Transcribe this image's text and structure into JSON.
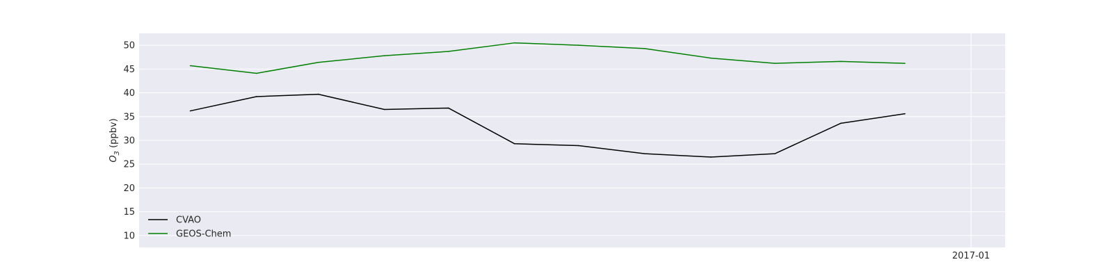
{
  "chart_data": {
    "type": "line",
    "title": "",
    "ylabel": "O3 (ppbv)",
    "ylabel_parts": {
      "base": "O",
      "sub": "3",
      "unit": " (ppbv)"
    },
    "xlabel": "",
    "ylim": [
      7.5,
      52.5
    ],
    "yticks": [
      10,
      15,
      20,
      25,
      30,
      35,
      40,
      45,
      50
    ],
    "x": [
      "2016-01",
      "2016-02",
      "2016-03",
      "2016-04",
      "2016-05",
      "2016-06",
      "2016-07",
      "2016-08",
      "2016-09",
      "2016-10",
      "2016-11",
      "2016-12"
    ],
    "xlim": [
      "2015-12-08",
      "2017-01-17"
    ],
    "xticks": [
      "2017-01"
    ],
    "xtick_labels": [
      "2017-01"
    ],
    "grid": true,
    "legend_position": "lower-left",
    "series": [
      {
        "name": "CVAO",
        "color": "#000000",
        "values": [
          36.2,
          39.2,
          39.7,
          36.5,
          36.8,
          29.3,
          28.9,
          27.2,
          26.5,
          27.2,
          33.6,
          35.6
        ]
      },
      {
        "name": "GEOS-Chem",
        "color": "#008000",
        "values": [
          45.7,
          44.1,
          46.4,
          47.8,
          48.7,
          50.5,
          50.0,
          49.3,
          47.3,
          46.2,
          46.6,
          46.2
        ]
      }
    ]
  }
}
